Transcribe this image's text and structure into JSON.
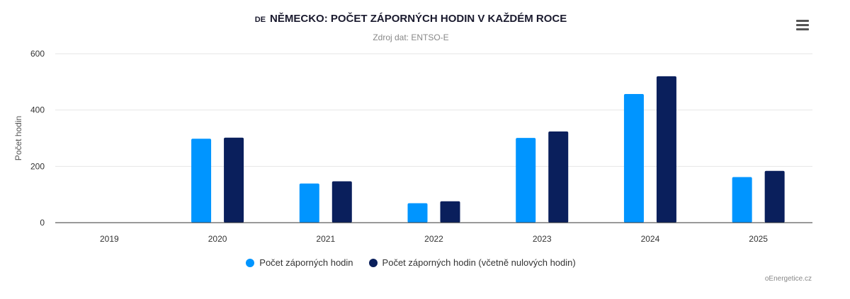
{
  "header": {
    "flag_code": "DE",
    "title": "NĚMECKO: POČET ZÁPORNÝCH HODIN V KAŽDÉM ROCE",
    "subtitle": "Zdroj dat: ENTSO-E"
  },
  "credits": "oEnergetice.cz",
  "colors": {
    "series1": "#0095ff",
    "series2": "#0a1f5c",
    "grid": "#e6e6e6",
    "axis": "#333333"
  },
  "chart_data": {
    "type": "bar",
    "title": "NĚMECKO: POČET ZÁPORNÝCH HODIN V KAŽDÉM ROCE",
    "subtitle": "Zdroj dat: ENTSO-E",
    "xlabel": "",
    "ylabel": "Počet hodin",
    "ylim": [
      0,
      600
    ],
    "yticks": [
      0,
      200,
      400,
      600
    ],
    "grid": true,
    "legend_position": "bottom",
    "categories": [
      "2019",
      "2020",
      "2021",
      "2022",
      "2023",
      "2024",
      "2025"
    ],
    "series": [
      {
        "name": "Počet záporných hodin",
        "values": [
          0,
          298,
          139,
          69,
          301,
          457,
          162
        ]
      },
      {
        "name": "Počet záporných hodin (včetně nulových hodin)",
        "values": [
          0,
          302,
          147,
          76,
          324,
          520,
          184
        ]
      }
    ]
  }
}
